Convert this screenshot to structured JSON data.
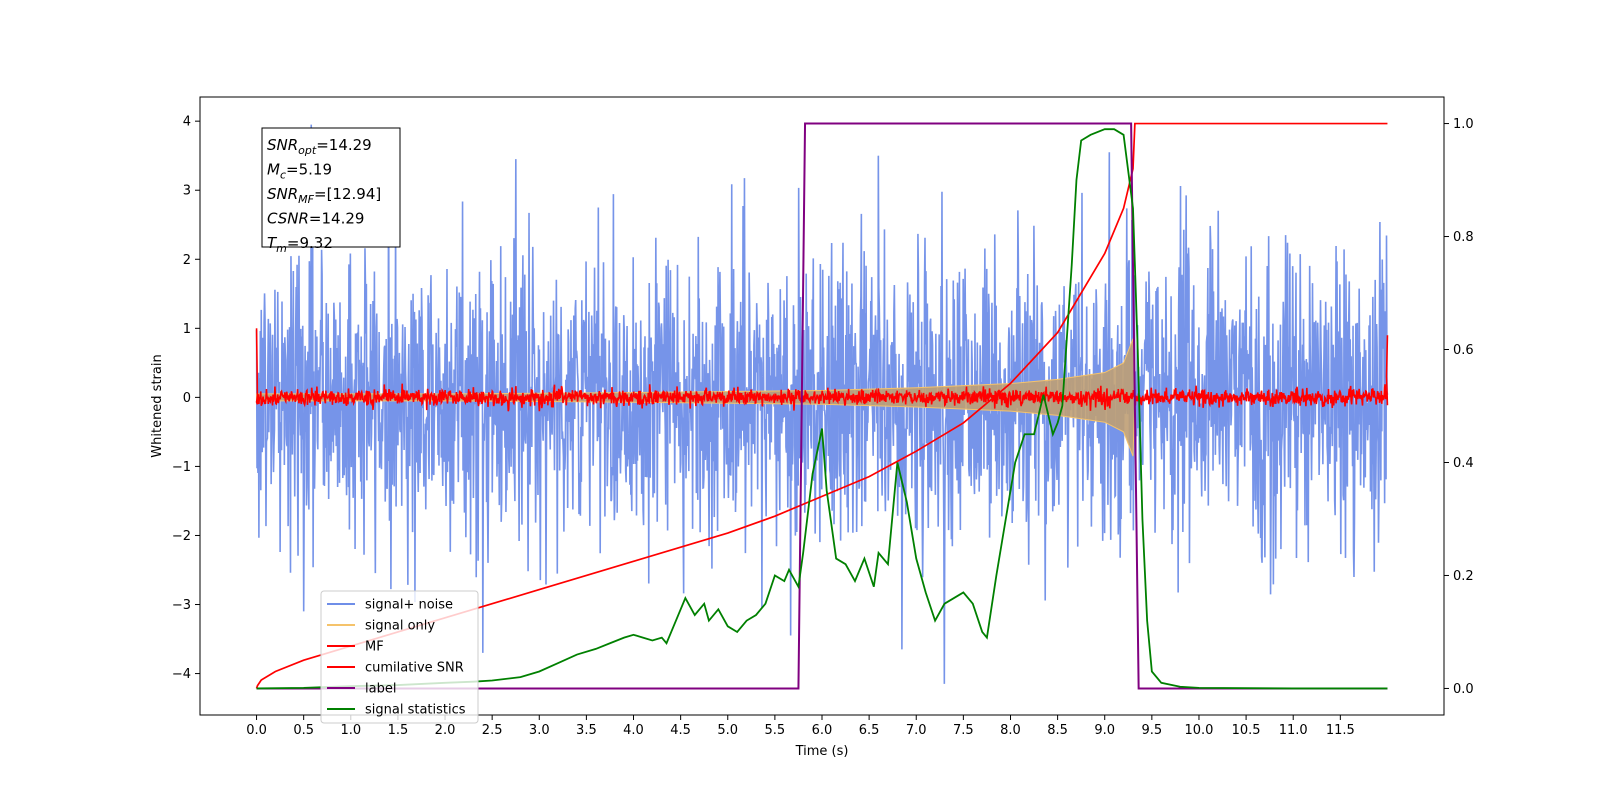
{
  "chart_data": {
    "type": "line",
    "xlabel": "Time (s)",
    "ylabel_left": "Whitened strain",
    "ylabel_right": "",
    "xlim": [
      -0.6,
      12.6
    ],
    "ylim_left": [
      -4.6,
      4.35
    ],
    "ylim_right": [
      -0.047,
      1.047
    ],
    "x_ticks": [
      "0.0",
      "0.5",
      "1.0",
      "1.5",
      "2.0",
      "2.5",
      "3.0",
      "3.5",
      "4.0",
      "4.5",
      "5.0",
      "5.5",
      "6.0",
      "6.5",
      "7.0",
      "7.5",
      "8.0",
      "8.5",
      "9.0",
      "9.5",
      "10.0",
      "10.5",
      "11.0",
      "11.5"
    ],
    "y_ticks_left": [
      "4",
      "3",
      "2",
      "1",
      "0",
      "−1",
      "−2",
      "−3",
      "−4"
    ],
    "y_ticks_right": [
      "1.0",
      "0.8",
      "0.6",
      "0.4",
      "0.2",
      "0.0"
    ],
    "grid": false,
    "legend_position": "lower-left",
    "legend": [
      {
        "label": "signal+ noise",
        "color": "#6f8ee8"
      },
      {
        "label": "signal only",
        "color": "#f5c36b"
      },
      {
        "label": "MF",
        "color": "#ff0000"
      },
      {
        "label": "cumilative SNR",
        "color": "#ff0000"
      },
      {
        "label": "label",
        "color": "#800080"
      },
      {
        "label": "signal statistics",
        "color": "#008000"
      }
    ],
    "info_box": [
      {
        "base": "SNR",
        "sub": "opt",
        "rest": "=14.29"
      },
      {
        "base": "M",
        "sub": "c",
        "rest": "=5.19"
      },
      {
        "base": "SNR",
        "sub": "MF",
        "rest": "=[12.94]"
      },
      {
        "base": "CSNR",
        "sub": "",
        "rest": "=14.29"
      },
      {
        "base": "T",
        "sub": "m",
        "rest": "=9.32"
      }
    ],
    "series": [
      {
        "name": "signal+ noise",
        "axis": "left",
        "color": "#6f8ee8",
        "x_range": [
          0.0,
          12.0
        ],
        "noise_std": 1.05,
        "notable_peaks": [
          [
            0.58,
            3.95
          ],
          [
            2.75,
            3.45
          ],
          [
            6.6,
            3.5
          ],
          [
            9.05,
            3.55
          ],
          [
            7.3,
            -4.15
          ],
          [
            6.85,
            -3.65
          ],
          [
            2.4,
            -3.7
          ],
          [
            0.5,
            -3.1
          ]
        ]
      },
      {
        "name": "signal only",
        "axis": "left",
        "color": "#f5c36b",
        "envelope": [
          [
            0.0,
            0.05
          ],
          [
            2.0,
            0.05
          ],
          [
            4.0,
            0.07
          ],
          [
            6.0,
            0.1
          ],
          [
            7.0,
            0.14
          ],
          [
            8.0,
            0.2
          ],
          [
            8.5,
            0.26
          ],
          [
            9.0,
            0.36
          ],
          [
            9.2,
            0.5
          ],
          [
            9.3,
            0.85
          ],
          [
            9.32,
            0.0
          ]
        ]
      },
      {
        "name": "MF",
        "axis": "left",
        "color": "#ff0000",
        "x_range": [
          0.0,
          12.0
        ],
        "noise_std": 0.06,
        "edge_values": [
          [
            0.0,
            1.0
          ],
          [
            12.0,
            0.9
          ]
        ]
      },
      {
        "name": "cumilative SNR",
        "axis": "right",
        "color": "#ff0000",
        "x": [
          0.0,
          0.01,
          0.05,
          0.2,
          0.5,
          1.0,
          1.5,
          2.0,
          2.5,
          3.0,
          3.5,
          4.0,
          4.5,
          5.0,
          5.5,
          6.0,
          6.5,
          7.0,
          7.5,
          8.0,
          8.5,
          9.0,
          9.2,
          9.3,
          9.32,
          12.0
        ],
        "y": [
          0.0,
          0.005,
          0.015,
          0.03,
          0.05,
          0.075,
          0.1,
          0.125,
          0.15,
          0.175,
          0.2,
          0.225,
          0.25,
          0.275,
          0.305,
          0.34,
          0.375,
          0.42,
          0.47,
          0.54,
          0.63,
          0.77,
          0.85,
          0.92,
          1.0,
          1.0
        ]
      },
      {
        "name": "label",
        "axis": "right",
        "color": "#800080",
        "x": [
          0.0,
          5.75,
          5.82,
          9.28,
          9.36,
          12.0
        ],
        "y": [
          0.0,
          0.0,
          1.0,
          1.0,
          0.0,
          0.0
        ]
      },
      {
        "name": "signal statistics",
        "axis": "right",
        "color": "#008000",
        "x": [
          0.0,
          0.5,
          1.0,
          1.5,
          2.0,
          2.3,
          2.5,
          2.8,
          3.0,
          3.2,
          3.4,
          3.6,
          3.75,
          3.9,
          4.0,
          4.1,
          4.2,
          4.3,
          4.35,
          4.45,
          4.55,
          4.65,
          4.75,
          4.8,
          4.9,
          5.0,
          5.1,
          5.2,
          5.3,
          5.4,
          5.5,
          5.6,
          5.65,
          5.75,
          5.8,
          5.9,
          6.0,
          6.05,
          6.15,
          6.25,
          6.35,
          6.45,
          6.55,
          6.6,
          6.7,
          6.8,
          6.9,
          7.0,
          7.1,
          7.2,
          7.3,
          7.4,
          7.5,
          7.6,
          7.7,
          7.75,
          7.85,
          7.95,
          8.05,
          8.15,
          8.25,
          8.35,
          8.45,
          8.5,
          8.55,
          8.65,
          8.7,
          8.75,
          8.85,
          9.0,
          9.1,
          9.2,
          9.3,
          9.35,
          9.4,
          9.45,
          9.5,
          9.6,
          9.8,
          10.0,
          11.0,
          12.0
        ],
        "y": [
          0.0,
          0.001,
          0.004,
          0.006,
          0.01,
          0.012,
          0.014,
          0.02,
          0.03,
          0.045,
          0.06,
          0.07,
          0.08,
          0.09,
          0.095,
          0.09,
          0.085,
          0.09,
          0.08,
          0.12,
          0.16,
          0.13,
          0.15,
          0.12,
          0.14,
          0.11,
          0.1,
          0.12,
          0.13,
          0.15,
          0.2,
          0.19,
          0.21,
          0.18,
          0.24,
          0.38,
          0.46,
          0.35,
          0.23,
          0.22,
          0.19,
          0.23,
          0.18,
          0.24,
          0.22,
          0.4,
          0.33,
          0.23,
          0.17,
          0.12,
          0.15,
          0.16,
          0.17,
          0.15,
          0.1,
          0.09,
          0.2,
          0.3,
          0.4,
          0.45,
          0.45,
          0.52,
          0.45,
          0.47,
          0.5,
          0.75,
          0.9,
          0.97,
          0.98,
          0.99,
          0.99,
          0.98,
          0.85,
          0.6,
          0.3,
          0.12,
          0.03,
          0.01,
          0.003,
          0.001,
          0.0,
          0.0
        ]
      }
    ]
  }
}
